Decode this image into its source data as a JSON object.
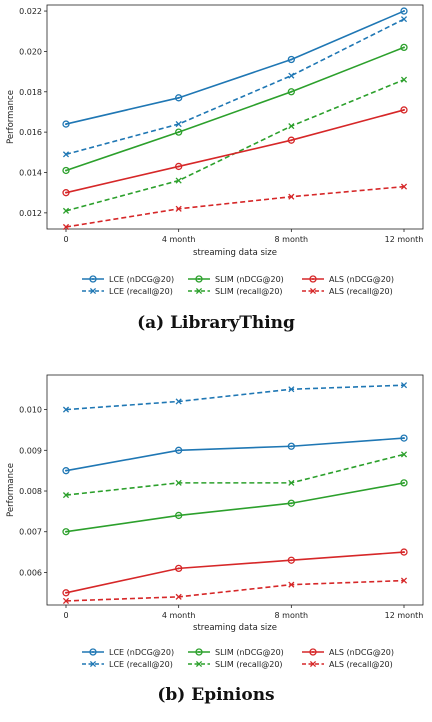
{
  "chart_data": [
    {
      "type": "line",
      "caption": "(a) LibraryThing",
      "xlabel": "streaming data size",
      "ylabel": "Performance",
      "categories": [
        "0",
        "4 month",
        "8 month",
        "12 month"
      ],
      "ylim": [
        0.0112,
        0.0223
      ],
      "yticks": [
        "0.012",
        "0.014",
        "0.016",
        "0.018",
        "0.020",
        "0.022"
      ],
      "grid": false,
      "legend_position": "below",
      "series": [
        {
          "name": "LCE (nDCG@20)",
          "color": "#1f77b4",
          "dashed": false,
          "marker": "circle",
          "values": [
            0.0164,
            0.0177,
            0.0196,
            0.022
          ]
        },
        {
          "name": "LCE (recall@20)",
          "color": "#1f77b4",
          "dashed": true,
          "marker": "x",
          "values": [
            0.0149,
            0.0164,
            0.0188,
            0.0216
          ]
        },
        {
          "name": "SLIM (nDCG@20)",
          "color": "#2ca02c",
          "dashed": false,
          "marker": "circle",
          "values": [
            0.0141,
            0.016,
            0.018,
            0.0202
          ]
        },
        {
          "name": "SLIM (recall@20)",
          "color": "#2ca02c",
          "dashed": true,
          "marker": "x",
          "values": [
            0.0121,
            0.0136,
            0.0163,
            0.0186
          ]
        },
        {
          "name": "ALS (nDCG@20)",
          "color": "#d62728",
          "dashed": false,
          "marker": "circle",
          "values": [
            0.013,
            0.0143,
            0.0156,
            0.0171
          ]
        },
        {
          "name": "ALS (recall@20)",
          "color": "#d62728",
          "dashed": true,
          "marker": "x",
          "values": [
            0.0113,
            0.0122,
            0.0128,
            0.0133
          ]
        }
      ]
    },
    {
      "type": "line",
      "caption": "(b) Epinions",
      "xlabel": "streaming data size",
      "ylabel": "Performance",
      "categories": [
        "0",
        "4 month",
        "8 month",
        "12 month"
      ],
      "ylim": [
        0.0052,
        0.01085
      ],
      "yticks": [
        "0.006",
        "0.007",
        "0.008",
        "0.009",
        "0.010"
      ],
      "grid": false,
      "legend_position": "below",
      "series": [
        {
          "name": "LCE (nDCG@20)",
          "color": "#1f77b4",
          "dashed": false,
          "marker": "circle",
          "values": [
            0.0085,
            0.009,
            0.0091,
            0.0093
          ]
        },
        {
          "name": "LCE (recall@20)",
          "color": "#1f77b4",
          "dashed": true,
          "marker": "x",
          "values": [
            0.01,
            0.0102,
            0.0105,
            0.0106
          ]
        },
        {
          "name": "SLIM (nDCG@20)",
          "color": "#2ca02c",
          "dashed": false,
          "marker": "circle",
          "values": [
            0.007,
            0.0074,
            0.0077,
            0.0082
          ]
        },
        {
          "name": "SLIM (recall@20)",
          "color": "#2ca02c",
          "dashed": true,
          "marker": "x",
          "values": [
            0.0079,
            0.0082,
            0.0082,
            0.0089
          ]
        },
        {
          "name": "ALS (nDCG@20)",
          "color": "#d62728",
          "dashed": false,
          "marker": "circle",
          "values": [
            0.0055,
            0.0061,
            0.0063,
            0.0065
          ]
        },
        {
          "name": "ALS (recall@20)",
          "color": "#d62728",
          "dashed": true,
          "marker": "x",
          "values": [
            0.0053,
            0.0054,
            0.0057,
            0.0058
          ]
        }
      ]
    }
  ]
}
